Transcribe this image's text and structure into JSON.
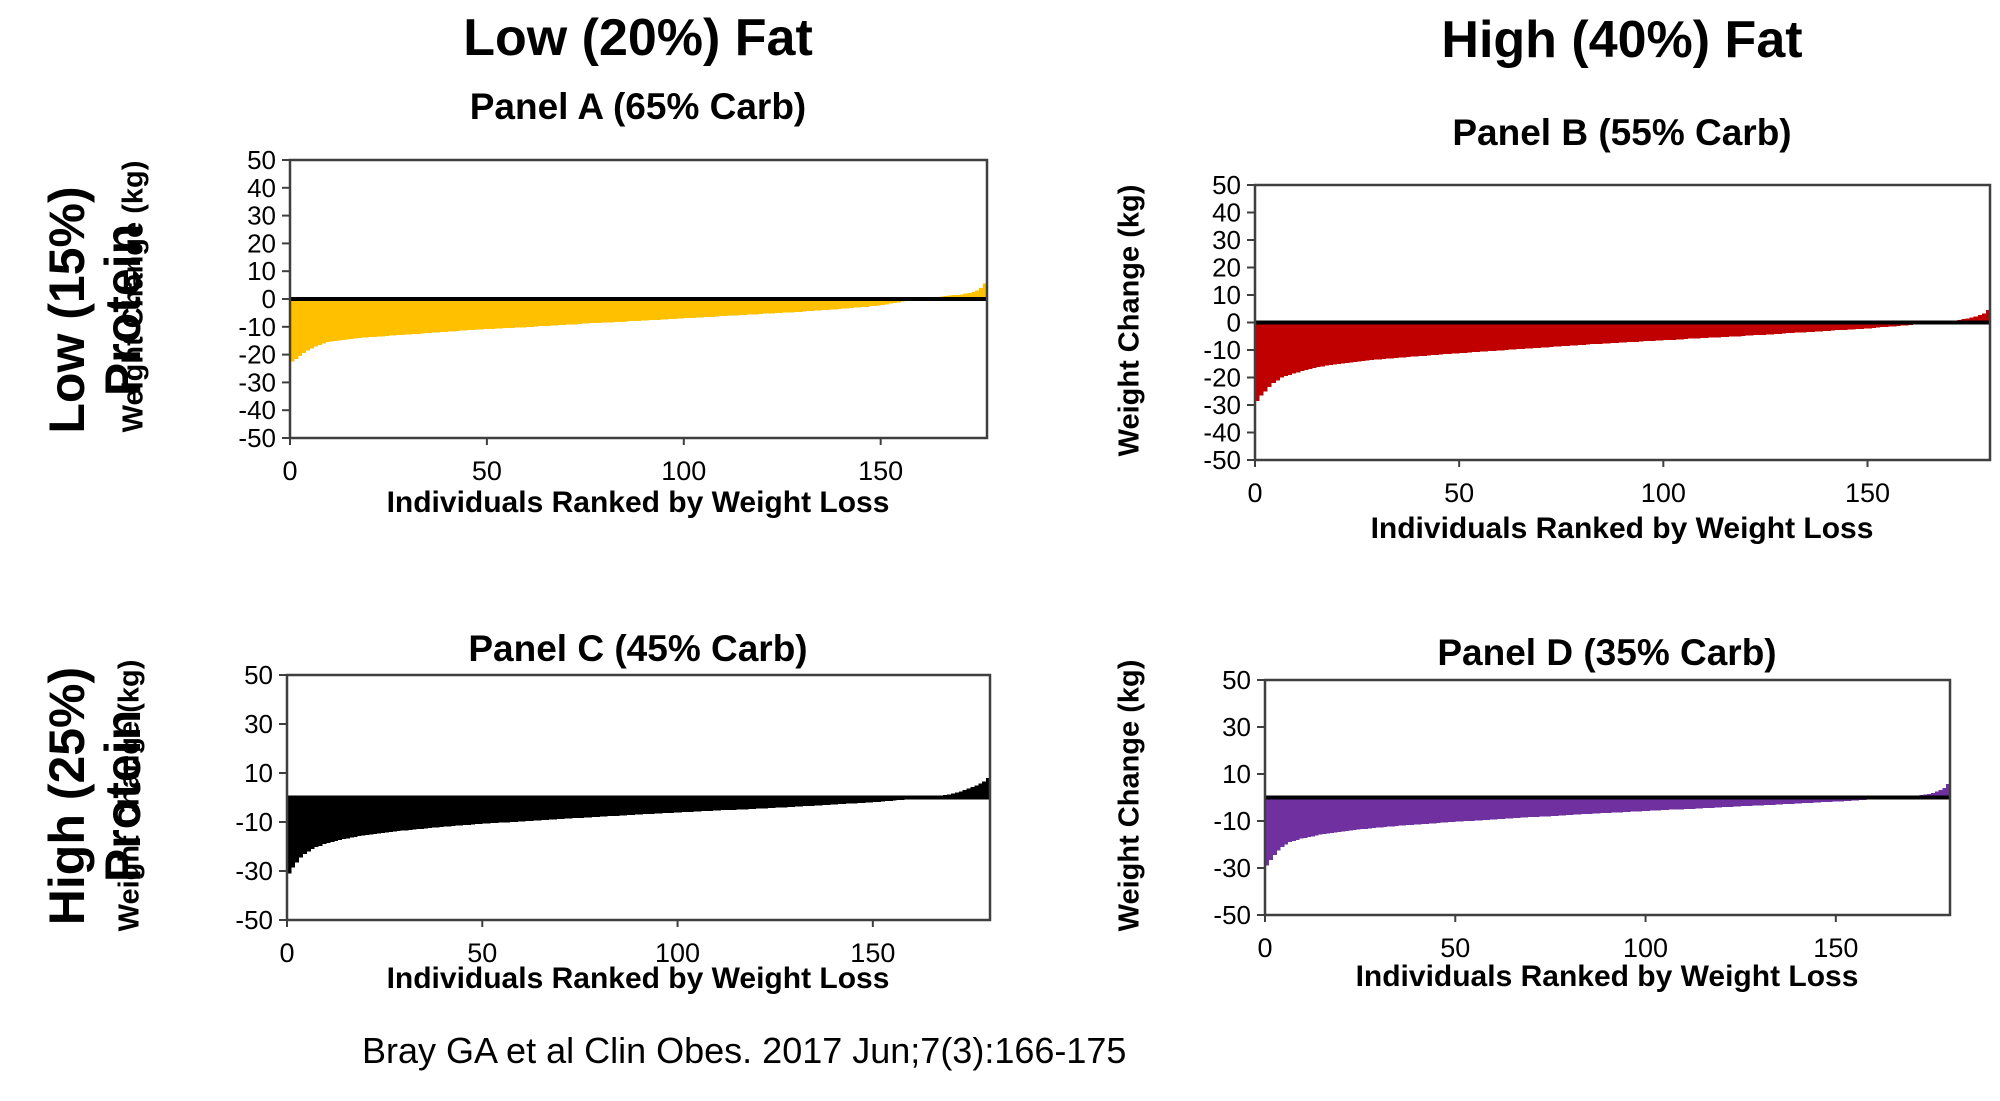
{
  "page": {
    "column_headers": [
      {
        "label": "Low (20%) Fat"
      },
      {
        "label": "High (40%) Fat"
      }
    ],
    "row_headers": [
      {
        "line1": "Low (15%)",
        "line2": "Protein"
      },
      {
        "line1": "High (25%)",
        "line2": "Protein"
      }
    ],
    "citation": "Bray GA et al Clin Obes. 2017 Jun;7(3):166-175"
  },
  "chart_data": [
    {
      "type": "bar",
      "panel": "A",
      "title": "Panel A (65% Carb)",
      "condition": {
        "fat": "Low (20%) Fat",
        "protein": "Low (15%) Protein",
        "carb": "65% Carb"
      },
      "xlabel": "Individuals Ranked by Weight Loss",
      "ylabel": "Weight Change (kg)",
      "bar_color": "#FFC000",
      "ylim": [
        -50,
        50
      ],
      "yticks": [
        50,
        40,
        30,
        20,
        10,
        0,
        -10,
        -20,
        -30,
        -40,
        -50
      ],
      "xticks": [
        0,
        50,
        100,
        150
      ],
      "grid": false,
      "legend": false,
      "n_individuals": 177,
      "values": [
        -22.5,
        -21.5,
        -20.5,
        -19.5,
        -18.5,
        -17.8,
        -17.0,
        -16.5,
        -16.0,
        -15.5,
        -15.3,
        -15.1,
        -14.9,
        -14.7,
        -14.5,
        -14.4,
        -14.2,
        -14.1,
        -13.9,
        -13.8,
        -13.7,
        -13.6,
        -13.5,
        -13.4,
        -13.3,
        -13.2,
        -13.1,
        -13.0,
        -12.9,
        -12.8,
        -12.7,
        -12.6,
        -12.5,
        -12.4,
        -12.3,
        -12.2,
        -12.1,
        -12.0,
        -11.9,
        -11.8,
        -11.7,
        -11.6,
        -11.5,
        -11.4,
        -11.3,
        -11.2,
        -11.1,
        -11.0,
        -10.9,
        -10.8,
        -10.7,
        -10.7,
        -10.6,
        -10.6,
        -10.5,
        -10.4,
        -10.4,
        -10.3,
        -10.3,
        -10.2,
        -10.1,
        -10.0,
        -9.9,
        -9.8,
        -9.8,
        -9.7,
        -9.6,
        -9.5,
        -9.4,
        -9.3,
        -9.2,
        -9.1,
        -9.1,
        -9.0,
        -8.9,
        -8.8,
        -8.7,
        -8.7,
        -8.6,
        -8.5,
        -8.4,
        -8.4,
        -8.3,
        -8.2,
        -8.2,
        -8.1,
        -8.0,
        -7.9,
        -7.9,
        -7.8,
        -7.7,
        -7.6,
        -7.6,
        -7.5,
        -7.4,
        -7.3,
        -7.2,
        -7.2,
        -7.1,
        -7.0,
        -6.9,
        -6.8,
        -6.8,
        -6.7,
        -6.6,
        -6.5,
        -6.4,
        -6.4,
        -6.3,
        -6.2,
        -6.1,
        -6.0,
        -6.0,
        -5.9,
        -5.8,
        -5.7,
        -5.6,
        -5.6,
        -5.5,
        -5.4,
        -5.3,
        -5.2,
        -5.2,
        -5.1,
        -5.0,
        -4.9,
        -4.8,
        -4.8,
        -4.7,
        -4.6,
        -4.5,
        -4.4,
        -4.3,
        -4.2,
        -4.1,
        -4.0,
        -3.9,
        -3.8,
        -3.7,
        -3.6,
        -3.5,
        -3.4,
        -3.2,
        -3.1,
        -3.0,
        -2.9,
        -2.8,
        -2.6,
        -2.5,
        -2.4,
        -2.2,
        -1.9,
        -1.7,
        -1.4,
        -1.2,
        -0.9,
        -0.6,
        -0.3,
        -0.1,
        0.2,
        0.3,
        0.4,
        0.6,
        0.7,
        0.8,
        0.9,
        1.1,
        1.2,
        1.4,
        1.5,
        1.7,
        2.0,
        2.2,
        2.6,
        3.0,
        4.0,
        5.5
      ]
    },
    {
      "type": "bar",
      "panel": "B",
      "title": "Panel B (55% Carb)",
      "condition": {
        "fat": "High (40%) Fat",
        "protein": "Low (15%) Protein",
        "carb": "55% Carb"
      },
      "xlabel": "Individuals Ranked by Weight Loss",
      "ylabel": "Weight Change (kg)",
      "bar_color": "#C00000",
      "ylim": [
        -50,
        50
      ],
      "yticks": [
        50,
        40,
        30,
        20,
        10,
        0,
        -10,
        -20,
        -30,
        -40,
        -50
      ],
      "xticks": [
        0,
        50,
        100,
        150
      ],
      "grid": false,
      "legend": false,
      "n_individuals": 180,
      "values": [
        -28.5,
        -26.5,
        -25.0,
        -23.5,
        -22.0,
        -21.0,
        -20.0,
        -19.5,
        -19.0,
        -18.5,
        -18.1,
        -17.7,
        -17.3,
        -16.9,
        -16.5,
        -16.2,
        -16.0,
        -15.7,
        -15.5,
        -15.2,
        -15.0,
        -14.9,
        -14.7,
        -14.5,
        -14.4,
        -14.2,
        -14.0,
        -13.8,
        -13.7,
        -13.5,
        -13.4,
        -13.3,
        -13.1,
        -13.0,
        -12.9,
        -12.8,
        -12.7,
        -12.5,
        -12.4,
        -12.3,
        -12.2,
        -12.1,
        -12.0,
        -11.9,
        -11.8,
        -11.6,
        -11.5,
        -11.4,
        -11.3,
        -11.2,
        -11.1,
        -11.0,
        -10.9,
        -10.8,
        -10.7,
        -10.6,
        -10.5,
        -10.4,
        -10.3,
        -10.2,
        -10.1,
        -10.0,
        -9.9,
        -9.8,
        -9.7,
        -9.6,
        -9.5,
        -9.4,
        -9.3,
        -9.2,
        -9.1,
        -9.0,
        -8.9,
        -8.8,
        -8.7,
        -8.6,
        -8.5,
        -8.4,
        -8.3,
        -8.2,
        -8.1,
        -8.0,
        -7.9,
        -7.8,
        -7.8,
        -7.7,
        -7.6,
        -7.5,
        -7.4,
        -7.3,
        -7.2,
        -7.1,
        -7.1,
        -7.0,
        -6.9,
        -6.8,
        -6.7,
        -6.7,
        -6.6,
        -6.5,
        -6.4,
        -6.3,
        -6.3,
        -6.2,
        -6.1,
        -6.0,
        -5.9,
        -5.9,
        -5.8,
        -5.7,
        -5.6,
        -5.5,
        -5.5,
        -5.4,
        -5.3,
        -5.2,
        -5.1,
        -5.1,
        -5.0,
        -4.9,
        -4.8,
        -4.7,
        -4.6,
        -4.5,
        -4.5,
        -4.4,
        -4.3,
        -4.2,
        -4.1,
        -4.0,
        -3.9,
        -3.8,
        -3.7,
        -3.6,
        -3.6,
        -3.5,
        -3.4,
        -3.3,
        -3.2,
        -3.1,
        -3.0,
        -2.9,
        -2.8,
        -2.7,
        -2.7,
        -2.6,
        -2.5,
        -2.4,
        -2.3,
        -2.2,
        -2.1,
        -2.0,
        -1.8,
        -1.7,
        -1.6,
        -1.5,
        -1.4,
        -1.2,
        -1.1,
        -1.0,
        -0.9,
        -0.7,
        -0.6,
        -0.4,
        -0.3,
        -0.1,
        0.0,
        0.2,
        0.4,
        0.5,
        0.7,
        0.8,
        1.0,
        1.3,
        1.5,
        1.9,
        2.2,
        2.7,
        3.2,
        4.5
      ]
    },
    {
      "type": "bar",
      "panel": "C",
      "title": "Panel C (45% Carb)",
      "condition": {
        "fat": "Low (20%) Fat",
        "protein": "High (25%) Protein",
        "carb": "45% Carb"
      },
      "xlabel": "Individuals Ranked by Weight Loss",
      "ylabel": "Weight Change (kg)",
      "bar_color": "#000000",
      "ylim": [
        -50,
        50
      ],
      "yticks": [
        50,
        30,
        10,
        -10,
        -30,
        -50
      ],
      "xticks": [
        0,
        50,
        100,
        150
      ],
      "grid": false,
      "legend": false,
      "n_individuals": 180,
      "values": [
        -31.0,
        -28.5,
        -26.5,
        -24.5,
        -23.0,
        -22.0,
        -21.0,
        -20.3,
        -19.7,
        -19.0,
        -18.6,
        -18.2,
        -17.8,
        -17.4,
        -17.0,
        -16.7,
        -16.4,
        -16.1,
        -15.8,
        -15.5,
        -15.3,
        -15.1,
        -14.9,
        -14.7,
        -14.5,
        -14.3,
        -14.1,
        -13.9,
        -13.7,
        -13.5,
        -13.4,
        -13.2,
        -13.1,
        -12.9,
        -12.8,
        -12.6,
        -12.5,
        -12.3,
        -12.2,
        -12.0,
        -11.9,
        -11.8,
        -11.6,
        -11.5,
        -11.4,
        -11.3,
        -11.2,
        -11.0,
        -10.9,
        -10.8,
        -10.7,
        -10.6,
        -10.5,
        -10.4,
        -10.3,
        -10.2,
        -10.1,
        -10.0,
        -9.9,
        -9.8,
        -9.7,
        -9.6,
        -9.5,
        -9.4,
        -9.3,
        -9.2,
        -9.1,
        -9.0,
        -8.9,
        -8.8,
        -8.7,
        -8.6,
        -8.5,
        -8.4,
        -8.4,
        -8.3,
        -8.2,
        -8.1,
        -8.0,
        -7.9,
        -7.8,
        -7.7,
        -7.6,
        -7.5,
        -7.5,
        -7.4,
        -7.3,
        -7.2,
        -7.1,
        -7.0,
        -6.9,
        -6.8,
        -6.8,
        -6.7,
        -6.6,
        -6.5,
        -6.4,
        -6.4,
        -6.3,
        -6.2,
        -6.1,
        -6.0,
        -6.0,
        -5.9,
        -5.8,
        -5.7,
        -5.6,
        -5.6,
        -5.5,
        -5.4,
        -5.3,
        -5.2,
        -5.2,
        -5.1,
        -5.0,
        -4.9,
        -4.8,
        -4.8,
        -4.7,
        -4.6,
        -4.5,
        -4.4,
        -4.4,
        -4.3,
        -4.2,
        -4.1,
        -4.0,
        -4.0,
        -3.9,
        -3.8,
        -3.7,
        -3.6,
        -3.5,
        -3.4,
        -3.4,
        -3.3,
        -3.2,
        -3.1,
        -3.0,
        -2.9,
        -2.8,
        -2.7,
        -2.6,
        -2.5,
        -2.5,
        -2.4,
        -2.3,
        -2.2,
        -2.1,
        -2.0,
        -1.9,
        -1.8,
        -1.6,
        -1.5,
        -1.4,
        -1.3,
        -1.1,
        -1.0,
        -0.8,
        -0.7,
        -0.5,
        -0.4,
        -0.2,
        0.1,
        0.2,
        0.3,
        0.5,
        0.8,
        1.0,
        1.2,
        1.6,
        2.0,
        2.4,
        3.0,
        3.6,
        4.3,
        5.0,
        5.8,
        6.5,
        8.0
      ]
    },
    {
      "type": "bar",
      "panel": "D",
      "title": "Panel D (35% Carb)",
      "condition": {
        "fat": "High (40%) Fat",
        "protein": "High (25%) Protein",
        "carb": "35% Carb"
      },
      "xlabel": "Individuals Ranked by Weight Loss",
      "ylabel": "Weight Change (kg)",
      "bar_color": "#7030A0",
      "ylim": [
        -50,
        50
      ],
      "yticks": [
        50,
        30,
        10,
        -10,
        -30,
        -50
      ],
      "xticks": [
        0,
        50,
        100,
        150
      ],
      "grid": false,
      "legend": false,
      "n_individuals": 180,
      "values": [
        -29.0,
        -26.5,
        -24.5,
        -22.5,
        -21.0,
        -20.0,
        -19.0,
        -18.5,
        -18.0,
        -17.5,
        -17.2,
        -16.8,
        -16.5,
        -16.1,
        -15.8,
        -15.6,
        -15.3,
        -15.1,
        -14.8,
        -14.6,
        -14.4,
        -14.2,
        -14.1,
        -13.9,
        -13.7,
        -13.5,
        -13.3,
        -13.2,
        -13.0,
        -12.8,
        -12.7,
        -12.5,
        -12.4,
        -12.3,
        -12.2,
        -12.0,
        -11.9,
        -11.8,
        -11.6,
        -11.5,
        -11.4,
        -11.3,
        -11.2,
        -11.1,
        -11.0,
        -10.8,
        -10.7,
        -10.6,
        -10.5,
        -10.4,
        -10.3,
        -10.2,
        -10.1,
        -10.0,
        -9.9,
        -9.8,
        -9.7,
        -9.6,
        -9.5,
        -9.4,
        -9.3,
        -9.2,
        -9.1,
        -9.0,
        -8.9,
        -8.8,
        -8.7,
        -8.6,
        -8.5,
        -8.4,
        -8.3,
        -8.2,
        -8.1,
        -8.0,
        -8.0,
        -7.9,
        -7.8,
        -7.7,
        -7.6,
        -7.5,
        -7.4,
        -7.3,
        -7.2,
        -7.1,
        -7.1,
        -7.0,
        -6.9,
        -6.8,
        -6.7,
        -6.6,
        -6.5,
        -6.4,
        -6.4,
        -6.3,
        -6.2,
        -6.1,
        -6.0,
        -6.0,
        -5.9,
        -5.8,
        -5.7,
        -5.6,
        -5.6,
        -5.5,
        -5.4,
        -5.3,
        -5.2,
        -5.2,
        -5.1,
        -5.0,
        -4.9,
        -4.8,
        -4.8,
        -4.7,
        -4.6,
        -4.5,
        -4.4,
        -4.4,
        -4.3,
        -4.2,
        -4.1,
        -4.0,
        -4.0,
        -3.9,
        -3.8,
        -3.7,
        -3.6,
        -3.6,
        -3.5,
        -3.4,
        -3.3,
        -3.2,
        -3.2,
        -3.1,
        -3.0,
        -2.9,
        -2.8,
        -2.8,
        -2.7,
        -2.6,
        -2.5,
        -2.4,
        -2.4,
        -2.3,
        -2.2,
        -2.1,
        -2.0,
        -2.0,
        -1.9,
        -1.8,
        -1.7,
        -1.6,
        -1.5,
        -1.4,
        -1.3,
        -1.2,
        -1.1,
        -1.0,
        -0.9,
        -0.8,
        -0.7,
        -0.6,
        -0.5,
        -0.3,
        -0.2,
        -0.1,
        0.1,
        0.2,
        0.3,
        0.5,
        0.6,
        0.8,
        1.0,
        1.2,
        1.5,
        2.0,
        2.5,
        3.2,
        4.0,
        5.8
      ]
    }
  ],
  "style": {
    "axis_color": "#3f3f3f",
    "zero_line_color": "#000000",
    "tick_label_color": "#000000"
  }
}
